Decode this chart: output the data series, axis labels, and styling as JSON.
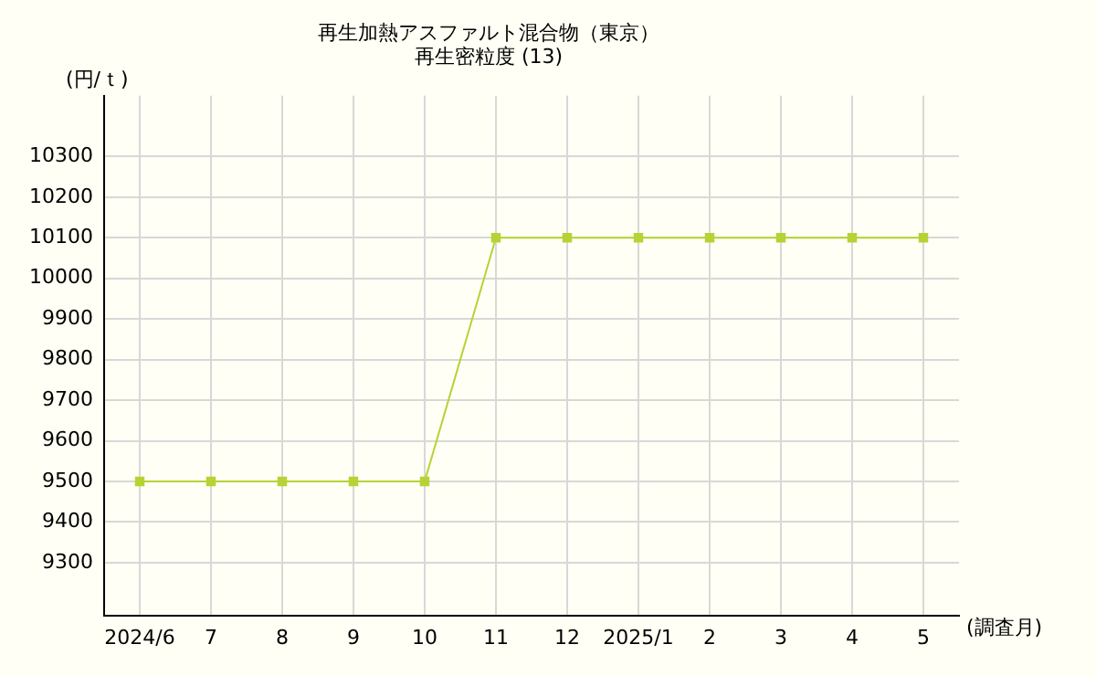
{
  "chart_data": {
    "type": "line",
    "title": "再生加熱アスファルト混合物（東京）",
    "subtitle": "再生密粒度 (13)",
    "ylabel": "(円/ｔ)",
    "xlabel": "(調査月)",
    "categories": [
      "2024/6",
      "7",
      "8",
      "9",
      "10",
      "11",
      "12",
      "2025/1",
      "2",
      "3",
      "4",
      "5"
    ],
    "series": [
      {
        "color": "#b5d334",
        "values": [
          9500,
          9500,
          9500,
          9500,
          9500,
          10100,
          10100,
          10100,
          10100,
          10100,
          10100,
          10100
        ]
      }
    ],
    "ylim": [
      9170,
      10450
    ],
    "yticks": [
      9300,
      9400,
      9500,
      9600,
      9700,
      9800,
      9900,
      10000,
      10100,
      10200,
      10300
    ],
    "grid": true,
    "legend": false,
    "marker": "square",
    "line_style": "solid"
  }
}
